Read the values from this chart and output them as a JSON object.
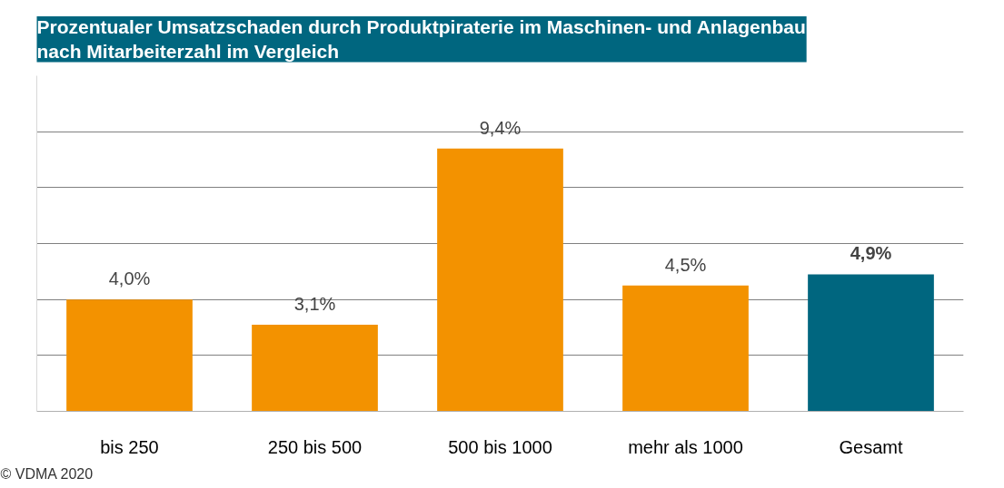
{
  "chart_data": {
    "type": "bar",
    "title": "Prozentualer Umsatzschaden durch Produktpiraterie im Maschinen- und Anlagenbau\nnach Mitarbeiterzahl im Vergleich",
    "categories": [
      "bis 250",
      "250 bis 500",
      "500 bis 1000",
      "mehr als 1000",
      "Gesamt"
    ],
    "values": [
      4.0,
      3.1,
      9.4,
      4.5,
      4.9
    ],
    "colors": [
      "#f39200",
      "#f39200",
      "#f39200",
      "#f39200",
      "#00667f"
    ],
    "value_labels": [
      "4,0%",
      "3,1%",
      "9,4%",
      "4,5%",
      "4,9%"
    ],
    "ylim": [
      0,
      12
    ],
    "yticks": [
      {
        "value": 2,
        "label": null
      },
      {
        "value": 4,
        "label": null
      },
      {
        "value": 6,
        "label": null
      },
      {
        "value": 8,
        "label": null
      },
      {
        "value": 10,
        "label": null
      }
    ],
    "grid": "y",
    "tick_labels": "x",
    "annotations": [
      "© VDMA 2020"
    ]
  }
}
